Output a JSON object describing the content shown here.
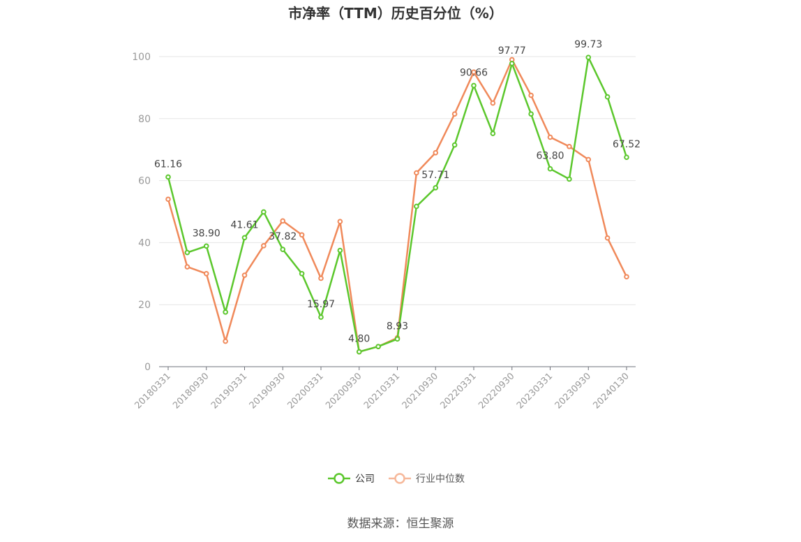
{
  "chart_data": {
    "type": "line",
    "title": "市净率（TTM）历史百分位（%）",
    "source": "数据来源：恒生聚源",
    "ylim": [
      0,
      100
    ],
    "yticks": [
      0,
      20,
      40,
      60,
      80,
      100
    ],
    "grid": true,
    "legend_position": "bottom",
    "x_tick_labels": [
      "20180331",
      "20180930",
      "20190331",
      "20190930",
      "20200331",
      "20200930",
      "20210331",
      "20210930",
      "20220331",
      "20220930",
      "20230331",
      "20230930",
      "20240130"
    ],
    "x_tick_every": 2,
    "series": [
      {
        "name": "公司",
        "color": "#5bc72c",
        "values": [
          61.16,
          36.8,
          38.9,
          17.6,
          41.61,
          49.9,
          37.82,
          30.0,
          15.97,
          37.5,
          4.8,
          6.5,
          8.93,
          51.7,
          57.71,
          71.5,
          90.66,
          75.2,
          97.77,
          81.5,
          63.8,
          60.5,
          99.73,
          87.0,
          67.52
        ],
        "labels": {
          "0": "61.16",
          "2": "38.90",
          "4": "41.61",
          "6": "37.82",
          "8": "15.97",
          "10": "4.80",
          "12": "8.93",
          "14": "57.71",
          "16": "90.66",
          "18": "97.77",
          "20": "63.80",
          "22": "99.73",
          "24": "67.52"
        }
      },
      {
        "name": "行业中位数",
        "color": "#f0895a",
        "values": [
          54.0,
          32.2,
          30.0,
          8.2,
          29.5,
          39.0,
          47.0,
          42.5,
          28.5,
          46.8,
          4.8,
          6.5,
          9.3,
          62.5,
          69.0,
          81.5,
          95.0,
          85.0,
          99.0,
          87.5,
          74.0,
          71.0,
          66.8,
          41.5,
          29.0
        ]
      }
    ]
  }
}
